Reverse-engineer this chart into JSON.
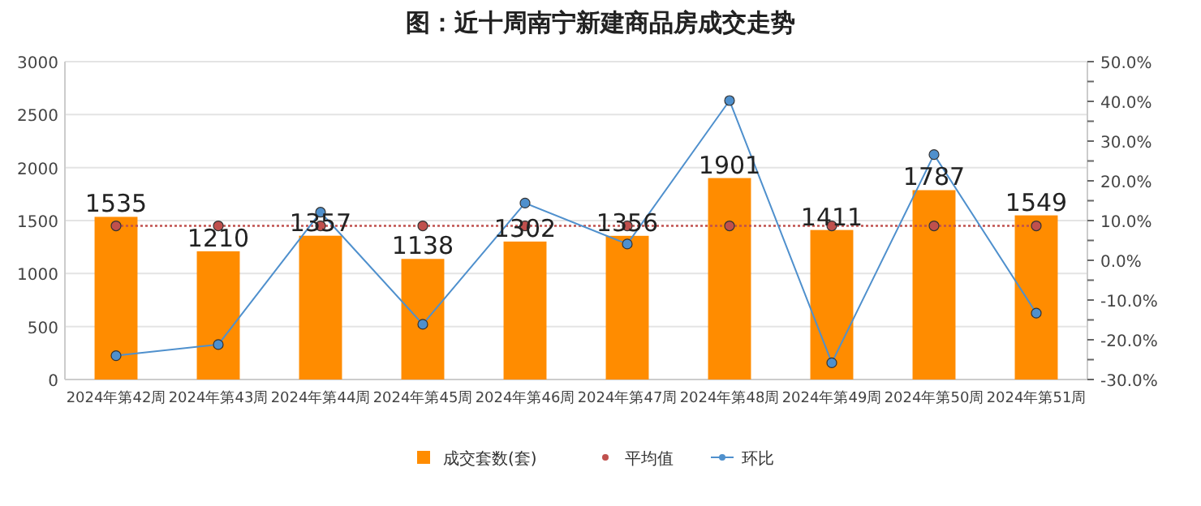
{
  "chart_data": {
    "type": "bar",
    "title": "图：近十周南宁新建商品房成交走势",
    "categories": [
      "2024年第42周",
      "2024年第43周",
      "2024年第44周",
      "2024年第45周",
      "2024年第46周",
      "2024年第47周",
      "2024年第48周",
      "2024年第49周",
      "2024年第50周",
      "2024年第51周"
    ],
    "series": [
      {
        "name": "成交套数(套)",
        "color": "#ff8c00",
        "values": [
          1535,
          1210,
          1357,
          1138,
          1302,
          1356,
          1901,
          1411,
          1787,
          1549
        ],
        "value_labels": [
          "1535",
          "1210",
          "1357",
          "1138",
          "1302",
          "1356",
          "1901",
          "1411",
          "1787",
          "1549"
        ]
      },
      {
        "name": "平均值",
        "type": "line",
        "color": "#c0504d",
        "marker": "circle",
        "line_style": "dotted",
        "values": [
          1450,
          1450,
          1450,
          1450,
          1450,
          1450,
          1450,
          1450,
          1450,
          1450
        ]
      },
      {
        "name": "环比",
        "type": "line",
        "axis": "y2",
        "color": "#4f90cd",
        "marker": "circle",
        "line_style": "solid",
        "values": [
          -24,
          -21.2,
          12.1,
          -16.1,
          14.4,
          4.1,
          40.2,
          -25.8,
          26.6,
          -13.3
        ]
      }
    ],
    "ylim": [
      0,
      3000
    ],
    "yticks": [
      0,
      500,
      1000,
      1500,
      2000,
      2500,
      3000
    ],
    "y2lim": [
      -30,
      50
    ],
    "y2ticks": [
      {
        "value": -30,
        "label": "-30.0%"
      },
      {
        "value": -25,
        "label": null
      },
      {
        "value": -20,
        "label": "-20.0%"
      },
      {
        "value": -15,
        "label": null
      },
      {
        "value": -10,
        "label": "-10.0%"
      },
      {
        "value": -5,
        "label": null
      },
      {
        "value": 0,
        "label": "0.0%"
      },
      {
        "value": 5,
        "label": null
      },
      {
        "value": 10,
        "label": "10.0%"
      },
      {
        "value": 15,
        "label": null
      },
      {
        "value": 20,
        "label": "20.0%"
      },
      {
        "value": 25,
        "label": null
      },
      {
        "value": 30,
        "label": "30.0%"
      },
      {
        "value": 35,
        "label": null
      },
      {
        "value": 40,
        "label": "40.0%"
      },
      {
        "value": 45,
        "label": null
      },
      {
        "value": 50,
        "label": "50.0%"
      }
    ],
    "grid": "y",
    "legend": "bottom"
  }
}
